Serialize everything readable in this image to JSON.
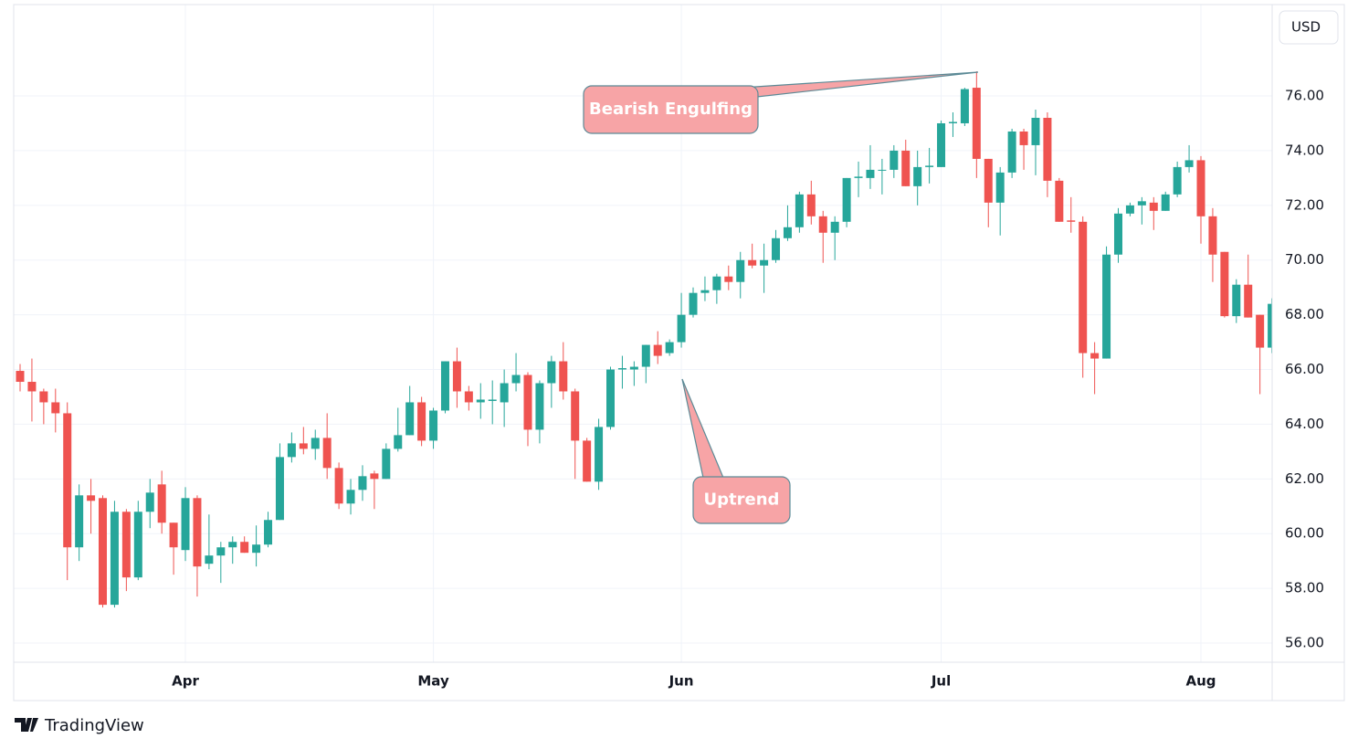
{
  "chart_data": {
    "type": "candlestick",
    "currency": "USD",
    "brand": "TradingView",
    "annotations": [
      "Bearish Engulfing",
      "Uptrend"
    ],
    "up_color": "#26a69a",
    "down_color": "#ef5350",
    "grid": true,
    "categories": [
      null,
      null,
      null,
      null,
      null,
      null,
      null,
      null,
      null,
      null,
      null,
      null,
      null,
      null,
      "Apr",
      null,
      null,
      null,
      null,
      null,
      null,
      null,
      null,
      null,
      null,
      null,
      null,
      null,
      null,
      null,
      null,
      null,
      null,
      null,
      null,
      "May",
      null,
      null,
      null,
      null,
      null,
      null,
      null,
      null,
      null,
      null,
      null,
      null,
      null,
      null,
      null,
      null,
      null,
      null,
      null,
      null,
      "Jun",
      null,
      null,
      null,
      null,
      null,
      null,
      null,
      null,
      null,
      null,
      null,
      null,
      null,
      null,
      null,
      null,
      null,
      null,
      null,
      null,
      null,
      "Jul",
      null,
      null,
      null,
      null,
      null,
      null,
      null,
      null,
      null,
      null,
      null,
      null,
      null,
      null,
      null,
      null,
      null,
      null,
      null,
      null,
      null,
      "Aug",
      null,
      null,
      null,
      null,
      null,
      null
    ],
    "open": [
      65.95,
      65.55,
      65.2,
      64.8,
      64.4,
      59.5,
      61.4,
      61.3,
      57.4,
      60.8,
      58.4,
      60.8,
      61.8,
      60.4,
      59.4,
      61.3,
      58.9,
      59.2,
      59.5,
      59.7,
      59.3,
      59.6,
      60.5,
      62.8,
      63.3,
      63.1,
      63.5,
      62.4,
      61.1,
      61.6,
      62.2,
      62.0,
      63.1,
      63.6,
      64.8,
      63.4,
      64.5,
      66.3,
      65.2,
      64.8,
      64.85,
      64.8,
      65.5,
      65.8,
      63.8,
      65.5,
      66.3,
      65.2,
      63.4,
      61.9,
      63.9,
      66.0,
      66.0,
      66.1,
      66.9,
      66.6,
      67.0,
      68.0,
      68.8,
      68.9,
      69.4,
      69.2,
      70.0,
      69.8,
      70.0,
      70.8,
      71.2,
      72.4,
      71.6,
      71.0,
      71.4,
      73.0,
      73.0,
      73.3,
      73.3,
      74.0,
      72.7,
      73.4,
      73.4,
      75.0,
      75.0,
      76.3,
      73.7,
      72.1,
      73.2,
      74.7,
      74.2,
      75.2,
      72.9,
      71.45,
      71.4,
      66.6,
      66.4,
      70.2,
      71.7,
      72.0,
      72.1,
      71.8,
      72.4,
      73.4,
      73.65,
      71.6,
      70.3,
      67.95,
      69.1,
      68.0,
      66.8
    ],
    "high": [
      66.2,
      66.4,
      65.3,
      65.3,
      64.8,
      61.8,
      62.0,
      61.4,
      61.2,
      60.9,
      61.2,
      62.0,
      62.3,
      60.4,
      61.7,
      61.4,
      60.7,
      59.7,
      59.9,
      59.9,
      60.3,
      60.8,
      63.3,
      63.7,
      63.9,
      63.8,
      64.4,
      62.6,
      62.0,
      62.5,
      62.3,
      63.3,
      64.6,
      65.4,
      65.0,
      64.6,
      66.3,
      66.8,
      65.4,
      65.5,
      65.6,
      66.0,
      66.6,
      65.9,
      65.6,
      66.5,
      67.0,
      65.3,
      63.5,
      64.2,
      66.1,
      66.5,
      66.3,
      66.9,
      67.4,
      67.1,
      68.8,
      69.0,
      69.4,
      69.5,
      69.8,
      70.3,
      70.6,
      70.6,
      71.1,
      72.0,
      72.5,
      72.9,
      71.8,
      71.6,
      73.0,
      73.6,
      74.2,
      73.7,
      74.2,
      74.4,
      74.0,
      74.1,
      75.1,
      75.4,
      76.3,
      76.9,
      73.7,
      73.4,
      74.8,
      74.8,
      75.5,
      75.4,
      73.0,
      72.3,
      71.6,
      67.0,
      70.5,
      71.9,
      72.1,
      72.3,
      72.3,
      72.5,
      73.6,
      74.2,
      73.8,
      71.9,
      70.3,
      69.3,
      70.2,
      68.0,
      68.6
    ],
    "low": [
      65.2,
      64.1,
      64.0,
      63.7,
      58.3,
      59.0,
      60.0,
      57.3,
      57.3,
      57.9,
      58.3,
      60.2,
      60.0,
      58.5,
      59.0,
      57.7,
      58.7,
      58.2,
      58.9,
      59.3,
      58.8,
      59.5,
      60.5,
      62.6,
      62.9,
      62.7,
      62.0,
      60.9,
      60.7,
      61.2,
      60.9,
      62.0,
      63.0,
      63.6,
      63.2,
      63.1,
      64.4,
      64.6,
      64.5,
      64.2,
      64.0,
      63.9,
      65.2,
      63.2,
      63.3,
      64.6,
      64.9,
      62.0,
      61.9,
      61.6,
      63.8,
      65.3,
      65.4,
      65.5,
      66.2,
      66.5,
      66.8,
      67.9,
      68.5,
      68.4,
      68.9,
      68.6,
      69.7,
      68.8,
      69.9,
      70.7,
      71.0,
      71.3,
      69.9,
      70.0,
      71.2,
      72.3,
      72.6,
      72.4,
      73.0,
      72.7,
      72.0,
      72.8,
      73.4,
      74.5,
      74.9,
      73.0,
      71.2,
      70.9,
      73.0,
      73.3,
      73.1,
      72.3,
      71.4,
      71.0,
      65.7,
      65.1,
      66.4,
      69.9,
      71.6,
      71.3,
      71.1,
      71.8,
      72.3,
      73.2,
      70.6,
      69.2,
      67.9,
      67.7,
      67.9,
      65.1,
      66.6
    ],
    "close": [
      65.55,
      65.2,
      64.8,
      64.4,
      59.5,
      61.4,
      61.2,
      57.4,
      60.8,
      58.4,
      60.8,
      61.5,
      60.4,
      59.5,
      61.3,
      58.8,
      59.2,
      59.5,
      59.7,
      59.3,
      59.6,
      60.5,
      62.8,
      63.3,
      63.1,
      63.5,
      62.4,
      61.1,
      61.6,
      62.1,
      62.0,
      63.1,
      63.6,
      64.8,
      63.4,
      64.5,
      66.3,
      65.2,
      64.8,
      64.9,
      64.9,
      65.5,
      65.8,
      63.8,
      65.5,
      66.3,
      65.2,
      63.4,
      61.9,
      63.9,
      66.0,
      66.05,
      66.1,
      66.9,
      66.5,
      67.0,
      68.0,
      68.8,
      68.9,
      69.4,
      69.2,
      70.0,
      69.8,
      70.0,
      70.8,
      71.2,
      72.4,
      71.6,
      71.0,
      71.4,
      73.0,
      73.05,
      73.3,
      73.3,
      74.0,
      72.7,
      73.4,
      73.45,
      75.0,
      75.05,
      76.25,
      73.7,
      72.1,
      73.2,
      74.7,
      74.2,
      75.2,
      72.9,
      71.4,
      71.4,
      66.6,
      66.4,
      70.2,
      71.7,
      72.0,
      72.15,
      71.8,
      72.4,
      73.4,
      73.65,
      71.6,
      70.2,
      67.95,
      69.1,
      67.9,
      66.8,
      68.4
    ],
    "ylim": [
      55.3,
      79.34
    ],
    "yticks": [
      {
        "value": 56,
        "label": "56.00"
      },
      {
        "value": 58,
        "label": "58.00"
      },
      {
        "value": 60,
        "label": "60.00"
      },
      {
        "value": 62,
        "label": "62.00"
      },
      {
        "value": 64,
        "label": "64.00"
      },
      {
        "value": 66,
        "label": "66.00"
      },
      {
        "value": 68,
        "label": "68.00"
      },
      {
        "value": 70,
        "label": "70.00"
      },
      {
        "value": 72,
        "label": "72.00"
      },
      {
        "value": 74,
        "label": "74.00"
      },
      {
        "value": 76,
        "label": "76.00"
      }
    ]
  }
}
